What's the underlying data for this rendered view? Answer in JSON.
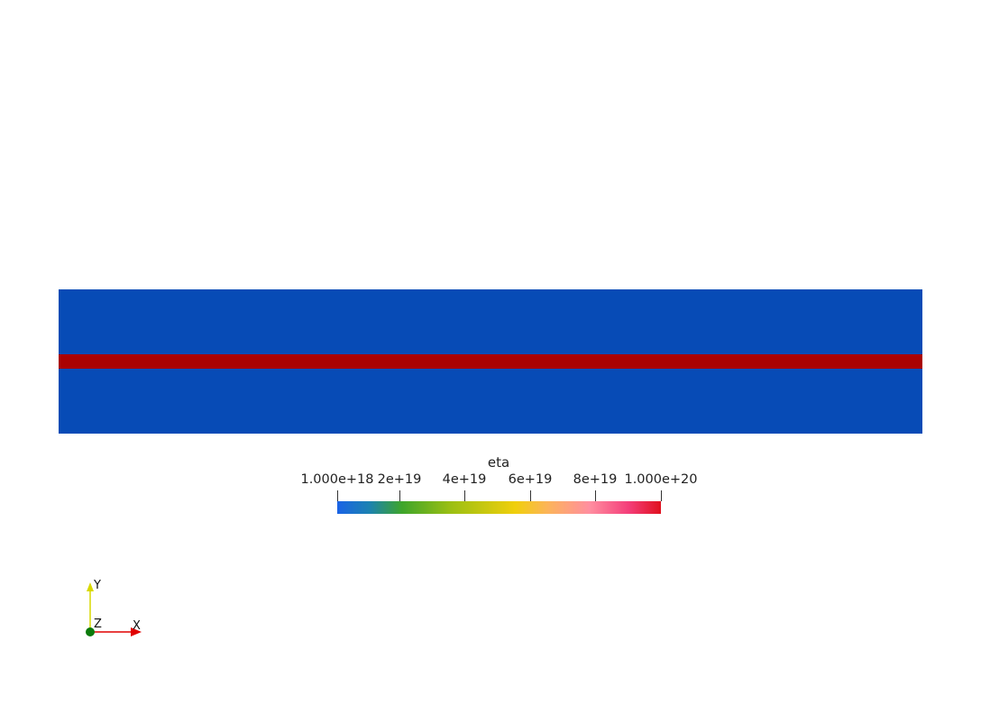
{
  "scalar_bar": {
    "title": "eta",
    "ticks": [
      {
        "label": "1.000e+18",
        "value": 1e+18
      },
      {
        "label": "2e+19",
        "value": 2e+19
      },
      {
        "label": "4e+19",
        "value": 4e+19
      },
      {
        "label": "6e+19",
        "value": 6e+19
      },
      {
        "label": "8e+19",
        "value": 8e+19
      },
      {
        "label": "1.000e+20",
        "value": 1e+20
      }
    ],
    "range": [
      1e+18,
      1e+20
    ]
  },
  "axes": {
    "x_label": "X",
    "y_label": "Y",
    "z_label": "Z",
    "x_color": "#e00000",
    "y_color": "#d8d800",
    "z_color": "#0b7a0b"
  },
  "colors": {
    "background": "#ffffff",
    "low_viscosity": "#074bb6",
    "high_viscosity": "#aa0202"
  }
}
